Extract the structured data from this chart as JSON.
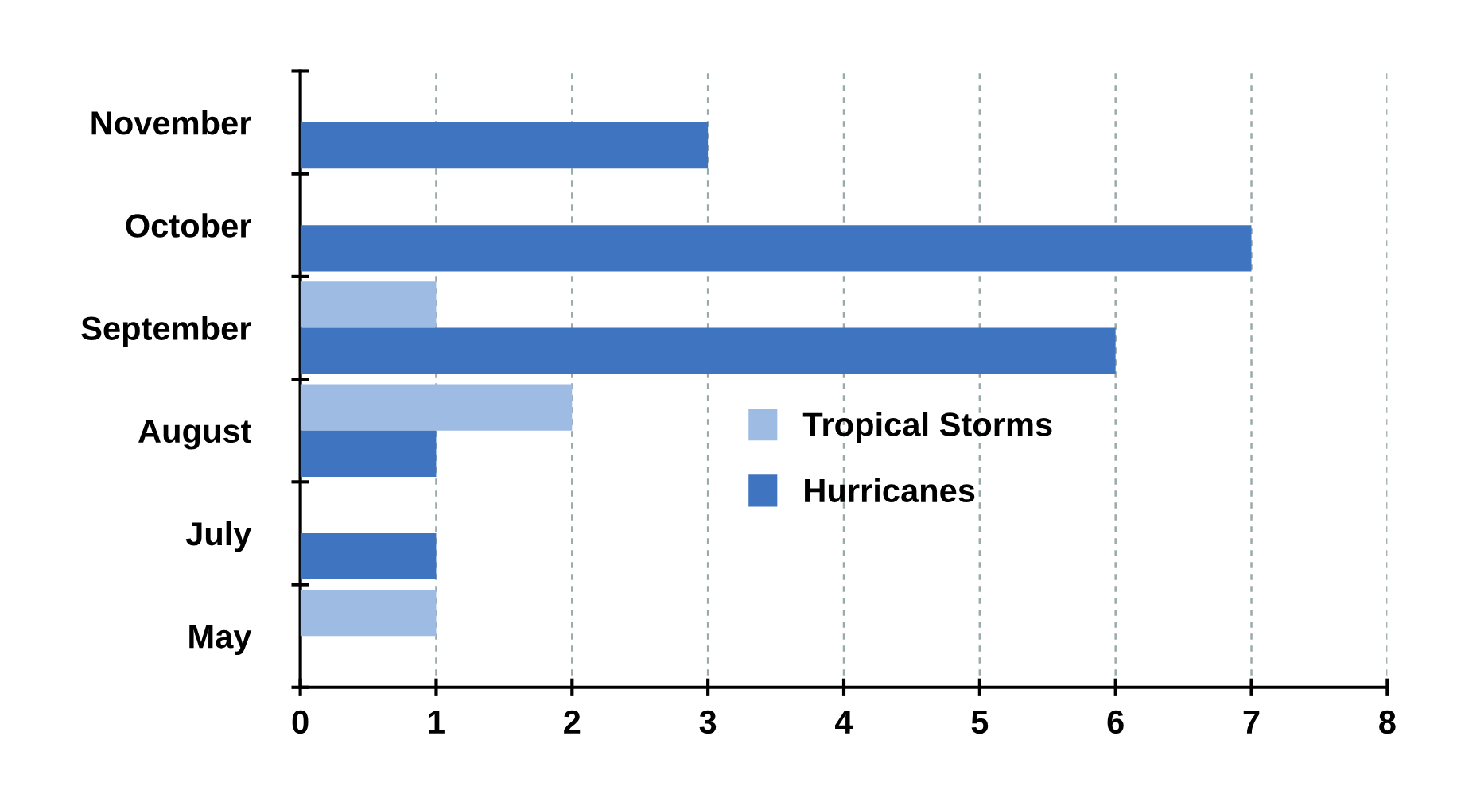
{
  "chart_data": {
    "type": "bar",
    "orientation": "horizontal",
    "categories": [
      "November",
      "October",
      "September",
      "August",
      "July",
      "May"
    ],
    "series": [
      {
        "name": "Tropical Storms",
        "color": "#9dbbe3",
        "values": [
          0,
          0,
          1,
          2,
          0,
          1
        ]
      },
      {
        "name": "Hurricanes",
        "color": "#3f74c0",
        "values": [
          3,
          7,
          6,
          1,
          1,
          0
        ]
      }
    ],
    "xlim": [
      0,
      8
    ],
    "xticks": [
      0,
      1,
      2,
      3,
      4,
      5,
      6,
      7,
      8
    ],
    "grid": "x",
    "legend": "center right"
  }
}
